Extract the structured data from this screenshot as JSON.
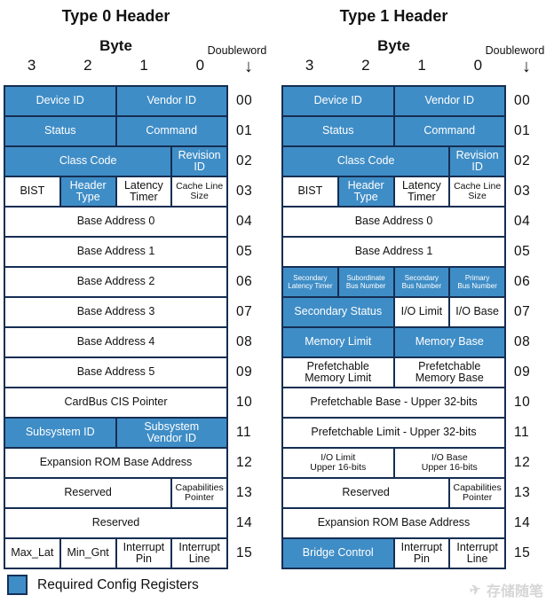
{
  "icons": {
    "doubleword_arrow": "↓",
    "watermark_plane": "✈"
  },
  "colors": {
    "register_blue": "#3F8DC6",
    "grid_border": "#152E52",
    "text_on_blue": "#FFFFFF",
    "watermark_gray": "#D6D6D6"
  },
  "legend": {
    "label": "Required Config Registers"
  },
  "watermark": {
    "text": "存储随笔"
  },
  "tables": [
    {
      "title": "Type 0 Header",
      "byte_label": "Byte",
      "doubleword_label": "Doubleword",
      "byte_numbers": [
        "3",
        "2",
        "1",
        "0"
      ],
      "rows": [
        {
          "dw": "00",
          "cells": [
            {
              "label": "Device ID",
              "span": 2,
              "blue": true
            },
            {
              "label": "Vendor ID",
              "span": 2,
              "blue": true
            }
          ]
        },
        {
          "dw": "01",
          "cells": [
            {
              "label": "Status",
              "span": 2,
              "blue": true
            },
            {
              "label": "Command",
              "span": 2,
              "blue": true
            }
          ]
        },
        {
          "dw": "02",
          "cells": [
            {
              "label": "Class Code",
              "span": 3,
              "blue": true
            },
            {
              "label": "Revision\nID",
              "span": 1,
              "blue": true
            }
          ]
        },
        {
          "dw": "03",
          "cells": [
            {
              "label": "BIST",
              "span": 1
            },
            {
              "label": "Header\nType",
              "span": 1,
              "blue": true
            },
            {
              "label": "Latency\nTimer",
              "span": 1
            },
            {
              "label": "Cache Line\nSize",
              "span": 1,
              "size": "sm"
            }
          ]
        },
        {
          "dw": "04",
          "cells": [
            {
              "label": "Base Address 0",
              "span": 4
            }
          ]
        },
        {
          "dw": "05",
          "cells": [
            {
              "label": "Base Address 1",
              "span": 4
            }
          ]
        },
        {
          "dw": "06",
          "cells": [
            {
              "label": "Base Address 2",
              "span": 4
            }
          ]
        },
        {
          "dw": "07",
          "cells": [
            {
              "label": "Base Address 3",
              "span": 4
            }
          ]
        },
        {
          "dw": "08",
          "cells": [
            {
              "label": "Base Address 4",
              "span": 4
            }
          ]
        },
        {
          "dw": "09",
          "cells": [
            {
              "label": "Base Address 5",
              "span": 4
            }
          ]
        },
        {
          "dw": "10",
          "cells": [
            {
              "label": "CardBus CIS Pointer",
              "span": 4
            }
          ]
        },
        {
          "dw": "11",
          "cells": [
            {
              "label": "Subsystem ID",
              "span": 2,
              "blue": true
            },
            {
              "label": "Subsystem\nVendor ID",
              "span": 2,
              "blue": true
            }
          ]
        },
        {
          "dw": "12",
          "cells": [
            {
              "label": "Expansion ROM Base Address",
              "span": 4
            }
          ]
        },
        {
          "dw": "13",
          "cells": [
            {
              "label": "Reserved",
              "span": 3
            },
            {
              "label": "Capabilities\nPointer",
              "span": 1,
              "size": "sm"
            }
          ]
        },
        {
          "dw": "14",
          "cells": [
            {
              "label": "Reserved",
              "span": 4
            }
          ]
        },
        {
          "dw": "15",
          "cells": [
            {
              "label": "Max_Lat",
              "span": 1
            },
            {
              "label": "Min_Gnt",
              "span": 1
            },
            {
              "label": "Interrupt\nPin",
              "span": 1
            },
            {
              "label": "Interrupt\nLine",
              "span": 1
            }
          ]
        }
      ]
    },
    {
      "title": "Type 1 Header",
      "byte_label": "Byte",
      "doubleword_label": "Doubleword",
      "byte_numbers": [
        "3",
        "2",
        "1",
        "0"
      ],
      "rows": [
        {
          "dw": "00",
          "cells": [
            {
              "label": "Device ID",
              "span": 2,
              "blue": true
            },
            {
              "label": "Vendor ID",
              "span": 2,
              "blue": true
            }
          ]
        },
        {
          "dw": "01",
          "cells": [
            {
              "label": "Status",
              "span": 2,
              "blue": true
            },
            {
              "label": "Command",
              "span": 2,
              "blue": true
            }
          ]
        },
        {
          "dw": "02",
          "cells": [
            {
              "label": "Class Code",
              "span": 3,
              "blue": true
            },
            {
              "label": "Revision\nID",
              "span": 1,
              "blue": true
            }
          ]
        },
        {
          "dw": "03",
          "cells": [
            {
              "label": "BIST",
              "span": 1
            },
            {
              "label": "Header\nType",
              "span": 1,
              "blue": true
            },
            {
              "label": "Latency\nTimer",
              "span": 1
            },
            {
              "label": "Cache Line\nSize",
              "span": 1,
              "size": "sm"
            }
          ]
        },
        {
          "dw": "04",
          "cells": [
            {
              "label": "Base Address 0",
              "span": 4
            }
          ]
        },
        {
          "dw": "05",
          "cells": [
            {
              "label": "Base Address 1",
              "span": 4
            }
          ]
        },
        {
          "dw": "06",
          "cells": [
            {
              "label": "Secondary\nLatency Timer",
              "span": 1,
              "blue": true,
              "size": "xs"
            },
            {
              "label": "Subordinate\nBus Number",
              "span": 1,
              "blue": true,
              "size": "xs"
            },
            {
              "label": "Secondary\nBus Number",
              "span": 1,
              "blue": true,
              "size": "xs"
            },
            {
              "label": "Primary\nBus Number",
              "span": 1,
              "blue": true,
              "size": "xs"
            }
          ]
        },
        {
          "dw": "07",
          "cells": [
            {
              "label": "Secondary Status",
              "span": 2,
              "blue": true
            },
            {
              "label": "I/O Limit",
              "span": 1
            },
            {
              "label": "I/O Base",
              "span": 1
            }
          ]
        },
        {
          "dw": "08",
          "cells": [
            {
              "label": "Memory Limit",
              "span": 2,
              "blue": true
            },
            {
              "label": "Memory Base",
              "span": 2,
              "blue": true
            }
          ]
        },
        {
          "dw": "09",
          "cells": [
            {
              "label": "Prefetchable\nMemory Limit",
              "span": 2
            },
            {
              "label": "Prefetchable\nMemory Base",
              "span": 2
            }
          ]
        },
        {
          "dw": "10",
          "cells": [
            {
              "label": "Prefetchable Base - Upper 32-bits",
              "span": 4
            }
          ]
        },
        {
          "dw": "11",
          "cells": [
            {
              "label": "Prefetchable Limit - Upper 32-bits",
              "span": 4
            }
          ]
        },
        {
          "dw": "12",
          "cells": [
            {
              "label": "I/O Limit\nUpper 16-bits",
              "span": 2,
              "size": "sm"
            },
            {
              "label": "I/O Base\nUpper 16-bits",
              "span": 2,
              "size": "sm"
            }
          ]
        },
        {
          "dw": "13",
          "cells": [
            {
              "label": "Reserved",
              "span": 3
            },
            {
              "label": "Capabilities\nPointer",
              "span": 1,
              "size": "sm"
            }
          ]
        },
        {
          "dw": "14",
          "cells": [
            {
              "label": "Expansion ROM Base Address",
              "span": 4
            }
          ]
        },
        {
          "dw": "15",
          "cells": [
            {
              "label": "Bridge Control",
              "span": 2,
              "blue": true
            },
            {
              "label": "Interrupt\nPin",
              "span": 1
            },
            {
              "label": "Interrupt\nLine",
              "span": 1
            }
          ]
        }
      ]
    }
  ]
}
